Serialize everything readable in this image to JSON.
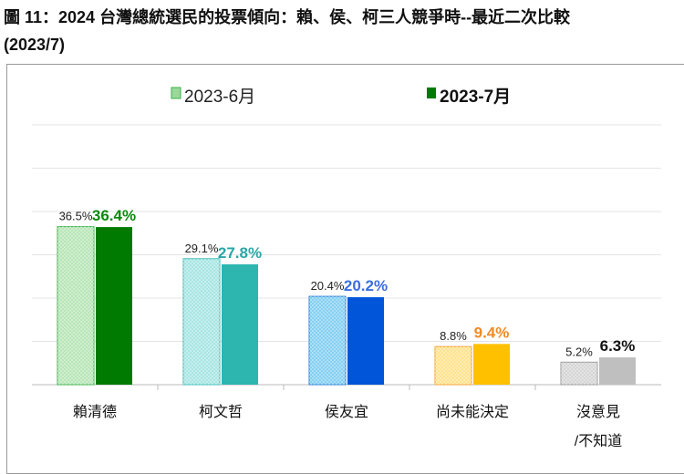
{
  "title_line1": "圖 11：2024 台灣總統選民的投票傾向：賴、侯、柯三人競爭時--最近二次比較",
  "title_line2": "(2023/7)",
  "chart_data": {
    "type": "bar",
    "categories": [
      "賴清德",
      "柯文哲",
      "侯友宜",
      "尚未能決定",
      "沒意見\n/不知道"
    ],
    "series": [
      {
        "name": "2023-6月",
        "values": [
          36.5,
          29.1,
          20.4,
          8.8,
          5.2
        ],
        "labels": [
          "36.5%",
          "29.1%",
          "20.4%",
          "8.8%",
          "5.2%"
        ],
        "fills": [
          "#b8e6b8",
          "#a8e6e4",
          "#86d0f2",
          "#ffe38f",
          "#d6d6d6"
        ],
        "strokes": [
          "#3cb04a",
          "#3cbcb8",
          "#2a7fd4",
          "#f0a030",
          "#999999"
        ],
        "pattern": true
      },
      {
        "name": "2023-7月",
        "values": [
          36.4,
          27.8,
          20.2,
          9.4,
          6.3
        ],
        "labels": [
          "36.4%",
          "27.8%",
          "20.2%",
          "9.4%",
          "6.3%"
        ],
        "fills": [
          "#007a00",
          "#2db5b0",
          "#0055d9",
          "#ffc000",
          "#bfbfbf"
        ],
        "label_colors": [
          "#0a8a0a",
          "#2aa6a6",
          "#3a6fe0",
          "#f08a24",
          "#111111"
        ]
      }
    ],
    "legend_colors": [
      "#9ad99a",
      "#007a00"
    ],
    "ylim": [
      0,
      60
    ],
    "grid": true,
    "gridlines": [
      10,
      20,
      30,
      40,
      50,
      60
    ],
    "legend": "top"
  }
}
